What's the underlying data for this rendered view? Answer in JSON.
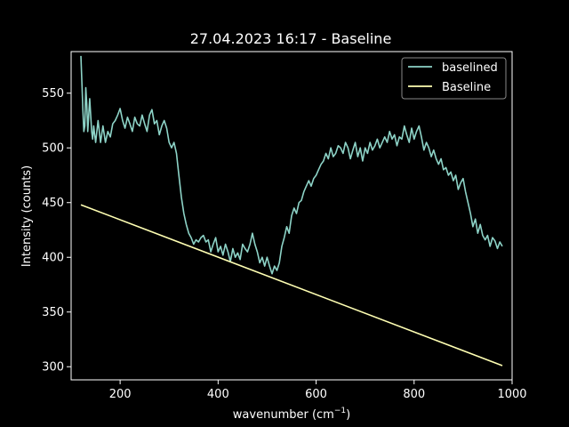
{
  "chart_data": {
    "type": "line",
    "title": "27.04.2023 16:17 - Baseline",
    "xlabel": "wavenumber (cm",
    "xlabel_sup": "−1",
    "xlabel_close": ")",
    "ylabel": "Intensity (counts)",
    "xlim": [
      100,
      1000
    ],
    "ylim": [
      288,
      588
    ],
    "xticks": [
      200,
      400,
      600,
      800,
      1000
    ],
    "yticks": [
      300,
      350,
      400,
      450,
      500,
      550
    ],
    "grid": false,
    "legend_position": "upper-right",
    "series": [
      {
        "name": "baselined",
        "color": "#8dd3c7",
        "x": [
          120,
          122,
          124,
          126,
          128,
          130,
          132,
          134,
          136,
          138,
          140,
          142,
          144,
          146,
          148,
          150,
          155,
          160,
          165,
          170,
          175,
          180,
          185,
          190,
          195,
          200,
          205,
          210,
          215,
          220,
          225,
          230,
          235,
          240,
          245,
          250,
          255,
          260,
          265,
          270,
          275,
          280,
          285,
          290,
          295,
          300,
          305,
          310,
          315,
          320,
          325,
          330,
          335,
          340,
          345,
          350,
          355,
          360,
          365,
          370,
          375,
          380,
          385,
          390,
          395,
          400,
          405,
          410,
          415,
          420,
          425,
          430,
          435,
          440,
          445,
          450,
          455,
          460,
          465,
          470,
          475,
          480,
          485,
          490,
          495,
          500,
          505,
          510,
          515,
          520,
          525,
          530,
          535,
          540,
          545,
          550,
          555,
          560,
          565,
          570,
          575,
          580,
          585,
          590,
          595,
          600,
          605,
          610,
          615,
          620,
          625,
          630,
          635,
          640,
          645,
          650,
          655,
          660,
          665,
          670,
          675,
          680,
          685,
          690,
          695,
          700,
          705,
          710,
          715,
          720,
          725,
          730,
          735,
          740,
          745,
          750,
          755,
          760,
          765,
          770,
          775,
          780,
          785,
          790,
          795,
          800,
          805,
          810,
          815,
          820,
          825,
          830,
          835,
          840,
          845,
          850,
          855,
          860,
          865,
          870,
          875,
          880,
          885,
          890,
          895,
          900,
          905,
          910,
          915,
          920,
          925,
          930,
          935,
          940,
          945,
          950,
          955,
          960,
          965,
          970,
          975,
          980
        ],
        "y": [
          584,
          560,
          535,
          515,
          520,
          555,
          540,
          515,
          530,
          545,
          530,
          515,
          508,
          520,
          512,
          505,
          525,
          505,
          520,
          505,
          515,
          510,
          522,
          525,
          530,
          536,
          525,
          518,
          528,
          522,
          515,
          528,
          522,
          520,
          530,
          522,
          515,
          530,
          535,
          522,
          525,
          512,
          520,
          525,
          518,
          505,
          500,
          505,
          495,
          475,
          455,
          440,
          430,
          422,
          418,
          412,
          416,
          414,
          418,
          420,
          414,
          416,
          405,
          412,
          418,
          405,
          410,
          402,
          412,
          405,
          396,
          408,
          400,
          404,
          398,
          412,
          408,
          405,
          412,
          422,
          412,
          405,
          395,
          400,
          392,
          400,
          392,
          385,
          392,
          388,
          395,
          410,
          418,
          428,
          422,
          438,
          445,
          440,
          450,
          452,
          460,
          465,
          470,
          465,
          472,
          475,
          480,
          485,
          488,
          495,
          490,
          500,
          492,
          495,
          502,
          500,
          495,
          505,
          500,
          490,
          498,
          505,
          492,
          500,
          488,
          500,
          495,
          505,
          498,
          502,
          508,
          500,
          505,
          510,
          505,
          515,
          508,
          512,
          502,
          510,
          508,
          520,
          512,
          505,
          518,
          508,
          515,
          520,
          510,
          498,
          505,
          500,
          492,
          498,
          490,
          485,
          490,
          480,
          482,
          475,
          478,
          470,
          475,
          462,
          468,
          472,
          460,
          450,
          440,
          428,
          435,
          422,
          430,
          420,
          416,
          420,
          410,
          418,
          415,
          408,
          414,
          410
        ]
      },
      {
        "name": "Baseline",
        "color": "#ffffb3",
        "x": [
          120,
          980
        ],
        "y": [
          448,
          301
        ]
      }
    ]
  }
}
